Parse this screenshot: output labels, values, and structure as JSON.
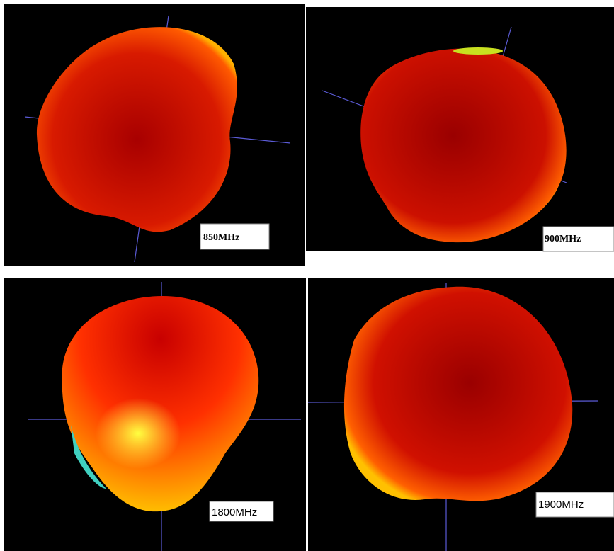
{
  "panels": [
    {
      "label": "850MHz"
    },
    {
      "label": "900MHz"
    },
    {
      "label": "1800MHz"
    },
    {
      "label": "1900MHz"
    }
  ]
}
